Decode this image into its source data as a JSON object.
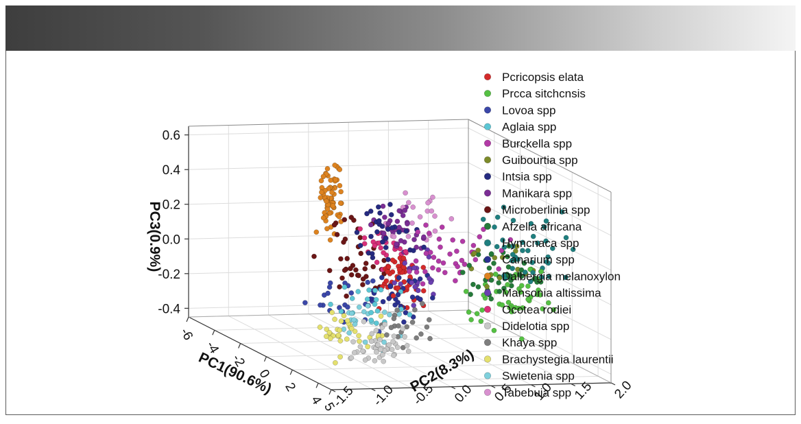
{
  "chart_data": {
    "type": "scatter",
    "projection": "3d",
    "title": "",
    "xlabel": "PC1(90.6%)",
    "ylabel": "PC2(8.3%)",
    "zlabel": "PC3(0.9%)",
    "x_ticks": [
      "-6",
      "-4",
      "-2",
      "0",
      "2",
      "4",
      "5"
    ],
    "y_ticks": [
      "-1.5",
      "-1.0",
      "-0.5",
      "0.0",
      "0.5",
      "1.0",
      "1.5",
      "2.0"
    ],
    "z_ticks": [
      "0.6",
      "0.4",
      "0.2",
      "0.0",
      "-0.2",
      "-0.4"
    ],
    "xlim": [
      -6,
      5
    ],
    "ylim": [
      -1.5,
      2.0
    ],
    "zlim": [
      -0.45,
      0.65
    ],
    "grid": true,
    "legend_position": "right",
    "series": [
      {
        "name": "Pcricopsis elata",
        "color": "#d42a2a",
        "x": [
          -0.5,
          1.5
        ],
        "y": [
          -0.3,
          0.5
        ],
        "z": [
          -0.2,
          0.2
        ],
        "n": 55
      },
      {
        "name": "Prcca sitchcnsis",
        "color": "#55c043",
        "x": [
          2.5,
          4.8
        ],
        "y": [
          0.2,
          1.8
        ],
        "z": [
          -0.3,
          0.3
        ],
        "n": 45
      },
      {
        "name": "Lovoa spp",
        "color": "#3b47a8",
        "x": [
          -0.5,
          1.0
        ],
        "y": [
          -1.2,
          0.2
        ],
        "z": [
          -0.4,
          0.1
        ],
        "n": 25
      },
      {
        "name": "Aglaia spp",
        "color": "#5cc6d4",
        "x": [
          0.0,
          2.0
        ],
        "y": [
          -1.0,
          0.3
        ],
        "z": [
          -0.35,
          0.05
        ],
        "n": 20
      },
      {
        "name": "Burckella spp",
        "color": "#b23aa6",
        "x": [
          0.0,
          4.0
        ],
        "y": [
          -0.3,
          1.5
        ],
        "z": [
          -0.05,
          0.4
        ],
        "n": 40
      },
      {
        "name": "Guibourtia spp",
        "color": "#7d8b2a",
        "x": [
          2.0,
          4.0
        ],
        "y": [
          0.3,
          1.5
        ],
        "z": [
          0.0,
          0.4
        ],
        "n": 15
      },
      {
        "name": "Intsia spp",
        "color": "#252a80",
        "x": [
          -1.0,
          1.5
        ],
        "y": [
          -0.5,
          0.5
        ],
        "z": [
          0.0,
          0.5
        ],
        "n": 30
      },
      {
        "name": "Manikara spp",
        "color": "#7b2e95",
        "x": [
          -1.5,
          1.0
        ],
        "y": [
          -0.2,
          0.6
        ],
        "z": [
          0.05,
          0.45
        ],
        "n": 40
      },
      {
        "name": "Microberlinia spp",
        "color": "#6b1616",
        "x": [
          -4.0,
          -1.0
        ],
        "y": [
          -0.5,
          0.5
        ],
        "z": [
          -0.3,
          0.35
        ],
        "n": 40
      },
      {
        "name": "Afzelia africana",
        "color": "#257a3a",
        "x": [
          2.0,
          4.5
        ],
        "y": [
          0.3,
          1.7
        ],
        "z": [
          -0.1,
          0.4
        ],
        "n": 40
      },
      {
        "name": "Hymcnaca spp",
        "color": "#1f7f7f",
        "x": [
          2.5,
          5.0
        ],
        "y": [
          0.5,
          2.0
        ],
        "z": [
          0.0,
          0.55
        ],
        "n": 40
      },
      {
        "name": "Canarium spp",
        "color": "#2b3190",
        "x": [
          0.0,
          2.0
        ],
        "y": [
          -0.5,
          0.5
        ],
        "z": [
          -0.3,
          0.15
        ],
        "n": 30
      },
      {
        "name": "Dalbergia melanoxylon",
        "color": "#dd8320",
        "x": [
          -6.0,
          -5.5
        ],
        "y": [
          0.0,
          0.5
        ],
        "z": [
          -0.05,
          0.5
        ],
        "n": 70
      },
      {
        "name": "Mansonia altissima",
        "color": "#6a3fb0",
        "x": [
          0.5,
          2.0
        ],
        "y": [
          -0.3,
          0.6
        ],
        "z": [
          -0.2,
          0.2
        ],
        "n": 20
      },
      {
        "name": "Ocotea rodiei",
        "color": "#d9307a",
        "x": [
          -2.0,
          0.5
        ],
        "y": [
          -0.3,
          0.5
        ],
        "z": [
          -0.1,
          0.35
        ],
        "n": 30
      },
      {
        "name": "Didelotia spp",
        "color": "#c8c8c8",
        "x": [
          2.0,
          4.5
        ],
        "y": [
          -1.2,
          0.0
        ],
        "z": [
          -0.45,
          -0.1
        ],
        "n": 45
      },
      {
        "name": "Khaya spp",
        "color": "#7e7e7e",
        "x": [
          1.5,
          4.0
        ],
        "y": [
          -0.8,
          0.3
        ],
        "z": [
          -0.35,
          0.0
        ],
        "n": 20
      },
      {
        "name": "Brachystegia laurentii",
        "color": "#e4e06e",
        "x": [
          0.5,
          2.5
        ],
        "y": [
          -1.2,
          -0.2
        ],
        "z": [
          -0.45,
          -0.1
        ],
        "n": 35
      },
      {
        "name": "Swietenia spp",
        "color": "#7fd0dc",
        "x": [
          0.5,
          2.5
        ],
        "y": [
          -1.0,
          0.0
        ],
        "z": [
          -0.4,
          -0.05
        ],
        "n": 20
      },
      {
        "name": "Tabebuia spp",
        "color": "#d890cf",
        "x": [
          -2.0,
          1.0
        ],
        "y": [
          0.0,
          1.0
        ],
        "z": [
          0.1,
          0.5
        ],
        "n": 20
      }
    ]
  }
}
